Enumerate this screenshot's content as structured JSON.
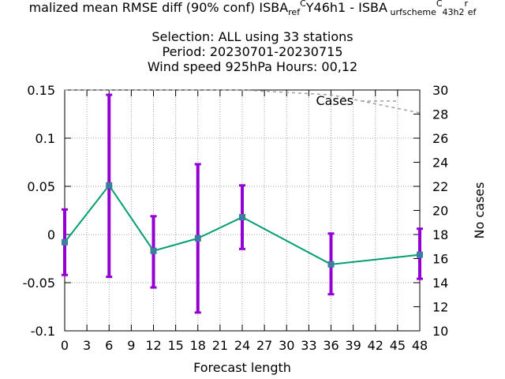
{
  "chart_data": {
    "type": "line",
    "title_lines": [
      "malized mean RMSE diff (90% conf) ISBA_ref_CY46h1 - ISBA_surfscheme_C43h2_ref",
      "Selection: ALL using    33 stations",
      "Period: 20230701-20230715",
      "Wind speed 925hPa   Hours:  00,12"
    ],
    "title_segments": [
      {
        "t": "malized mean RMSE diff (90% conf) ISBA",
        "s": 0
      },
      {
        "t": "ref",
        "s": -1
      },
      {
        "t": "C",
        "s": 1
      },
      {
        "t": "Y46h1 - ISBA",
        "s": 0
      },
      {
        "t": " ",
        "s": 1
      },
      {
        "t": "urfscheme",
        "s": -1
      },
      {
        "t": "C",
        "s": 1
      },
      {
        "t": "43h2",
        "s": -1
      },
      {
        "t": "r",
        "s": 1
      },
      {
        "t": "ef",
        "s": -1
      }
    ],
    "xlabel": "Forecast length",
    "ylabel": "",
    "y2label": "No cases",
    "xlim": [
      0,
      48
    ],
    "ylim": [
      -0.1,
      0.15
    ],
    "y2lim": [
      10,
      30
    ],
    "xticks": [
      0,
      3,
      6,
      9,
      12,
      15,
      18,
      21,
      24,
      27,
      30,
      33,
      36,
      39,
      42,
      45,
      48
    ],
    "xtick_labels": [
      "0",
      "3",
      "6",
      "9",
      "12",
      "15",
      "18",
      "21",
      "24",
      "27",
      "30",
      "33",
      "36",
      "39",
      "42",
      "45",
      "48"
    ],
    "yticks": [
      -0.1,
      -0.05,
      0,
      0.05,
      0.1,
      0.15
    ],
    "ytick_labels": [
      "-0.1",
      "-0.05",
      "0",
      "0.05",
      "0.1",
      "0.15"
    ],
    "y2ticks": [
      10,
      12,
      14,
      16,
      18,
      20,
      22,
      24,
      26,
      28,
      30
    ],
    "y2tick_labels": [
      "10",
      "12",
      "14",
      "16",
      "18",
      "20",
      "22",
      "24",
      "26",
      "28",
      "30"
    ],
    "grid": true,
    "legend": {
      "label": "Cases",
      "placement": "top-right"
    },
    "series": [
      {
        "color": "#009e73",
        "marker_color": "#3a7f9b",
        "errorbar_color": "#9400d3",
        "x": [
          0,
          6,
          12,
          18,
          24,
          36,
          48
        ],
        "y": [
          -0.008,
          0.051,
          -0.017,
          -0.004,
          0.018,
          -0.031,
          -0.021
        ],
        "yerr_low": [
          -0.042,
          -0.044,
          -0.055,
          -0.081,
          -0.015,
          -0.062,
          -0.046
        ],
        "yerr_high": [
          0.026,
          0.145,
          0.019,
          0.073,
          0.051,
          0.001,
          0.006
        ]
      },
      {
        "name": "Cases",
        "axis": "y2",
        "color": "#a0a0a0",
        "dash": "dashed",
        "x": [
          0,
          6,
          12,
          18,
          24,
          36,
          48
        ],
        "y": [
          30,
          30,
          30,
          30,
          30,
          29.6,
          28.1
        ]
      }
    ]
  }
}
